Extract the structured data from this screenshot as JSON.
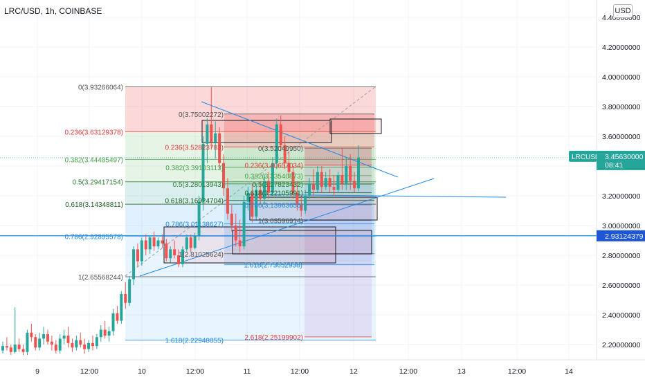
{
  "header": {
    "symbol_line": "LRC/USD, 1h, COINBASE"
  },
  "currency_button": "USD",
  "price_axis": {
    "ticks": [
      "4.40000000",
      "4.20000000",
      "4.00000000",
      "3.80000000",
      "3.60000000",
      "3.40000000",
      "3.20000000",
      "3.00000000",
      "2.80000000",
      "2.60000000",
      "2.40000000",
      "2.20000000"
    ],
    "current_price_label": {
      "symbol": "LRCUSD",
      "price": "3.45630000",
      "countdown": "08:41"
    },
    "line_price_label": "2.93124379"
  },
  "time_axis": {
    "ticks": [
      "9",
      "12:00",
      "10",
      "12:00",
      "11",
      "12:00",
      "12",
      "12:00",
      "13",
      "12:00",
      "14"
    ]
  },
  "fib_labels": {
    "fib1": [
      {
        "text": "0(3.93266064)",
        "level": 3.9327,
        "color": "#555555"
      },
      {
        "text": "0.236(3.63129378)",
        "level": 3.6313,
        "color": "#e53935"
      },
      {
        "text": "0.382(3.44485497)",
        "level": 3.4449,
        "color": "#43a047"
      },
      {
        "text": "0.5(3.29417154)",
        "level": 3.2942,
        "color": "#2e7d32"
      },
      {
        "text": "0.618(3.14348811)",
        "level": 3.1435,
        "color": "#1b5e20"
      },
      {
        "text": "0.786(2.92895578)",
        "level": 2.929,
        "color": "#1e88e5"
      },
      {
        "text": "1(2.65568244)",
        "level": 2.6557,
        "color": "#555555"
      },
      {
        "text": "1.618(2.22948055)",
        "level": 2.2295,
        "color": "#1e88e5"
      }
    ],
    "fib2": [
      {
        "text": "0(3.75002272)",
        "level": 3.75,
        "color": "#555555"
      },
      {
        "text": "0.236(3.52823783)",
        "level": 3.5282,
        "color": "#e53935"
      },
      {
        "text": "0.382(3.39103113)",
        "level": 3.391,
        "color": "#43a047"
      },
      {
        "text": "0.5(3.28013943)",
        "level": 3.2801,
        "color": "#2e7d32"
      },
      {
        "text": "0.618(3.16924704)",
        "level": 3.1692,
        "color": "#1b5e20"
      },
      {
        "text": "0.786(3.01138627)",
        "level": 3.0114,
        "color": "#1e88e5"
      },
      {
        "text": "1(2.81025624)",
        "level": 2.8103,
        "color": "#555555"
      },
      {
        "text": "1.618(2.73652938)",
        "level": 2.7365,
        "color": "#1e88e5"
      }
    ],
    "fib3": [
      {
        "text": "0(3.52049950)",
        "level": 3.5205,
        "color": "#555555"
      },
      {
        "text": "0.236(3.40657034)",
        "level": 3.4066,
        "color": "#e53935"
      },
      {
        "text": "0.382(3.33540873)",
        "level": 3.3354,
        "color": "#43a047"
      },
      {
        "text": "0.5(3.27823432)",
        "level": 3.2782,
        "color": "#2e7d32"
      },
      {
        "text": "0.618(3.22105991)",
        "level": 3.2211,
        "color": "#1b5e20"
      },
      {
        "text": "0.786(3.13963656)",
        "level": 3.1396,
        "color": "#1e88e5"
      },
      {
        "text": "1(3.03596914)",
        "level": 3.036,
        "color": "#555555"
      },
      {
        "text": "2.618(2.25199902)",
        "level": 2.252,
        "color": "#e53935"
      }
    ]
  },
  "colors": {
    "up": "#26a69a",
    "down": "#ef5350",
    "fib_line": "#1e88e5",
    "price_tag": "#26a69a",
    "line_tag": "#1e56d6"
  },
  "chart_data": {
    "type": "candlestick",
    "title": "LRC/USD, 1h, COINBASE",
    "ylim": [
      2.1,
      4.45
    ],
    "y_ticks": [
      4.4,
      4.2,
      4.0,
      3.8,
      3.6,
      3.4,
      3.2,
      3.0,
      2.8,
      2.6,
      2.4,
      2.2
    ],
    "last_price": 3.4563,
    "horizontal_line": 2.93124379,
    "candles": [
      [
        2.16,
        2.22,
        2.14,
        2.19
      ],
      [
        2.19,
        2.25,
        2.16,
        2.18
      ],
      [
        2.18,
        2.2,
        2.13,
        2.15
      ],
      [
        2.15,
        2.45,
        2.14,
        2.2
      ],
      [
        2.2,
        2.24,
        2.15,
        2.17
      ],
      [
        2.17,
        2.2,
        2.13,
        2.15
      ],
      [
        2.15,
        2.3,
        2.13,
        2.28
      ],
      [
        2.28,
        2.34,
        2.22,
        2.25
      ],
      [
        2.25,
        2.27,
        2.16,
        2.18
      ],
      [
        2.18,
        2.28,
        2.16,
        2.24
      ],
      [
        2.24,
        2.32,
        2.2,
        2.27
      ],
      [
        2.27,
        2.3,
        2.2,
        2.22
      ],
      [
        2.22,
        2.26,
        2.16,
        2.2
      ],
      [
        2.2,
        2.23,
        2.14,
        2.16
      ],
      [
        2.16,
        2.27,
        2.14,
        2.24
      ],
      [
        2.24,
        2.3,
        2.2,
        2.26
      ],
      [
        2.26,
        2.32,
        2.18,
        2.21
      ],
      [
        2.21,
        2.24,
        2.15,
        2.18
      ],
      [
        2.18,
        2.26,
        2.16,
        2.23
      ],
      [
        2.23,
        2.28,
        2.18,
        2.2
      ],
      [
        2.2,
        2.24,
        2.14,
        2.17
      ],
      [
        2.17,
        2.23,
        2.15,
        2.21
      ],
      [
        2.21,
        2.26,
        2.16,
        2.19
      ],
      [
        2.19,
        2.27,
        2.17,
        2.25
      ],
      [
        2.25,
        2.33,
        2.22,
        2.3
      ],
      [
        2.3,
        2.36,
        2.24,
        2.26
      ],
      [
        2.26,
        2.32,
        2.22,
        2.29
      ],
      [
        2.29,
        2.44,
        2.26,
        2.41
      ],
      [
        2.41,
        2.46,
        2.34,
        2.36
      ],
      [
        2.36,
        2.56,
        2.34,
        2.54
      ],
      [
        2.54,
        2.62,
        2.44,
        2.48
      ],
      [
        2.48,
        2.66,
        2.46,
        2.64
      ],
      [
        2.64,
        2.86,
        2.6,
        2.84
      ],
      [
        2.84,
        2.88,
        2.72,
        2.76
      ],
      [
        2.76,
        2.92,
        2.73,
        2.9
      ],
      [
        2.9,
        2.94,
        2.8,
        2.84
      ],
      [
        2.84,
        2.93,
        2.81,
        2.92
      ],
      [
        2.92,
        2.96,
        2.83,
        2.86
      ],
      [
        2.86,
        2.92,
        2.84,
        2.9
      ],
      [
        2.9,
        2.94,
        2.85,
        2.88
      ],
      [
        2.88,
        2.91,
        2.76,
        2.78
      ],
      [
        2.78,
        2.86,
        2.75,
        2.84
      ],
      [
        2.84,
        2.9,
        2.78,
        2.8
      ],
      [
        2.8,
        2.84,
        2.72,
        2.74
      ],
      [
        2.74,
        2.86,
        2.72,
        2.84
      ],
      [
        2.84,
        2.94,
        2.82,
        2.92
      ],
      [
        2.92,
        2.94,
        2.82,
        2.85
      ],
      [
        2.85,
        2.95,
        2.84,
        2.93
      ],
      [
        2.93,
        3.2,
        2.9,
        3.16
      ],
      [
        3.16,
        3.6,
        3.1,
        3.55
      ],
      [
        3.55,
        3.72,
        3.42,
        3.68
      ],
      [
        3.68,
        3.93,
        3.52,
        3.56
      ],
      [
        3.56,
        3.7,
        3.45,
        3.62
      ],
      [
        3.62,
        3.66,
        3.38,
        3.42
      ],
      [
        3.42,
        3.48,
        3.2,
        3.25
      ],
      [
        3.25,
        3.32,
        3.04,
        3.08
      ],
      [
        3.08,
        3.14,
        2.96,
        3.0
      ],
      [
        3.0,
        3.08,
        2.86,
        2.9
      ],
      [
        2.9,
        3.04,
        2.82,
        2.86
      ],
      [
        2.86,
        3.2,
        2.84,
        3.16
      ],
      [
        3.16,
        3.26,
        3.1,
        3.22
      ],
      [
        3.22,
        3.28,
        3.02,
        3.06
      ],
      [
        3.06,
        3.28,
        3.04,
        3.24
      ],
      [
        3.24,
        3.3,
        3.14,
        3.18
      ],
      [
        3.18,
        3.34,
        3.14,
        3.3
      ],
      [
        3.3,
        3.36,
        3.18,
        3.22
      ],
      [
        3.22,
        3.46,
        3.2,
        3.42
      ],
      [
        3.42,
        3.72,
        3.38,
        3.68
      ],
      [
        3.68,
        3.74,
        3.5,
        3.54
      ],
      [
        3.54,
        3.6,
        3.38,
        3.42
      ],
      [
        3.42,
        3.5,
        3.32,
        3.36
      ],
      [
        3.36,
        3.4,
        3.18,
        3.22
      ],
      [
        3.22,
        3.3,
        3.1,
        3.14
      ],
      [
        3.14,
        3.2,
        3.06,
        3.1
      ],
      [
        3.1,
        3.24,
        3.08,
        3.2
      ],
      [
        3.2,
        3.32,
        3.18,
        3.28
      ],
      [
        3.28,
        3.38,
        3.2,
        3.24
      ],
      [
        3.24,
        3.4,
        3.22,
        3.36
      ],
      [
        3.36,
        3.4,
        3.22,
        3.26
      ],
      [
        3.26,
        3.36,
        3.24,
        3.32
      ],
      [
        3.32,
        3.38,
        3.22,
        3.26
      ],
      [
        3.26,
        3.34,
        3.2,
        3.24
      ],
      [
        3.24,
        3.36,
        3.22,
        3.34
      ],
      [
        3.34,
        3.52,
        3.24,
        3.28
      ],
      [
        3.28,
        3.46,
        3.24,
        3.4
      ],
      [
        3.4,
        3.48,
        3.24,
        3.3
      ],
      [
        3.3,
        3.36,
        3.22,
        3.25
      ],
      [
        3.25,
        3.54,
        3.23,
        3.4563
      ]
    ]
  }
}
